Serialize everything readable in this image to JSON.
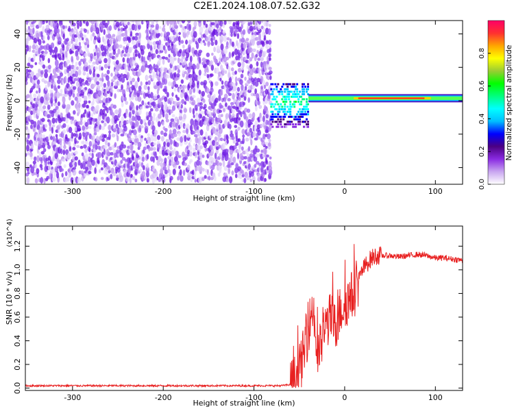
{
  "page": {
    "title": "C2E1.2024.108.07.52.G32"
  },
  "chart_data": [
    {
      "type": "heatmap",
      "title": "C2E1.2024.108.07.52.G32",
      "xlabel": "Height of straight line (km)",
      "ylabel": "Frequency (Hz)",
      "xlim": [
        -352,
        130
      ],
      "ylim": [
        -50,
        48
      ],
      "x_ticks": [
        -300,
        -200,
        -100,
        0,
        100
      ],
      "y_ticks": [
        -40,
        -20,
        0,
        20,
        40
      ],
      "colorbar": {
        "label": "Normalized spectral amplitude",
        "range": [
          0.0,
          1.0
        ],
        "ticks": [
          0.0,
          0.2,
          0.4,
          0.6,
          0.8
        ],
        "tick_labels": [
          "0.0",
          "0.2",
          "0.4",
          "0.6",
          "0.8"
        ],
        "colors": [
          "#ffffff",
          "#c9a6f0",
          "#8a2be2",
          "#4b0082",
          "#0000ff",
          "#00bfff",
          "#00ffff",
          "#00ff7f",
          "#00ff00",
          "#9acd32",
          "#ffff00",
          "#ffa500",
          "#ff3030",
          "#ff0066"
        ]
      },
      "regions": [
        {
          "name": "noise",
          "x_range": [
            -352,
            -82
          ],
          "freq_range": [
            -48,
            48
          ],
          "level_range": [
            0.05,
            0.25
          ]
        },
        {
          "name": "transition",
          "x_range": [
            -82,
            -40
          ],
          "freq_range": [
            -15,
            12
          ],
          "level_range": [
            0.2,
            0.5
          ]
        },
        {
          "name": "signal",
          "x_range": [
            -40,
            130
          ],
          "center_freq": 1.5,
          "peak_level": 0.9
        }
      ]
    },
    {
      "type": "line",
      "xlabel": "Height of straight line (km)",
      "ylabel": "SNR (10 * v/v)",
      "y_multiplier": "(x10^4)",
      "xlim": [
        -352,
        130
      ],
      "ylim": [
        -0.02,
        1.37
      ],
      "x_ticks": [
        -300,
        -200,
        -100,
        0,
        100
      ],
      "y_ticks": [
        0.0,
        0.2,
        0.4,
        0.6,
        0.8,
        1.0,
        1.2
      ],
      "y_tick_labels": [
        "0.0",
        "0.2",
        "0.4",
        "0.6",
        "0.8",
        "1.0",
        "1.2"
      ],
      "series": [
        {
          "color": "#e82020",
          "x": [
            -352,
            -300,
            -250,
            -200,
            -150,
            -100,
            -70,
            -60,
            -55,
            -50,
            -45,
            -40,
            -35,
            -30,
            -25,
            -20,
            -15,
            -10,
            -5,
            0,
            5,
            10,
            15,
            20,
            25,
            30,
            35,
            40,
            50,
            60,
            70,
            80,
            90,
            100,
            110,
            120,
            130
          ],
          "values": [
            0.02,
            0.02,
            0.02,
            0.02,
            0.02,
            0.02,
            0.02,
            0.03,
            0.06,
            0.15,
            0.3,
            0.5,
            0.7,
            0.25,
            0.4,
            0.55,
            0.6,
            0.5,
            0.65,
            0.72,
            0.75,
            0.8,
            0.9,
            1.0,
            1.06,
            1.1,
            1.12,
            1.12,
            1.12,
            1.11,
            1.12,
            1.13,
            1.12,
            1.1,
            1.1,
            1.09,
            1.08
          ]
        }
      ]
    }
  ]
}
